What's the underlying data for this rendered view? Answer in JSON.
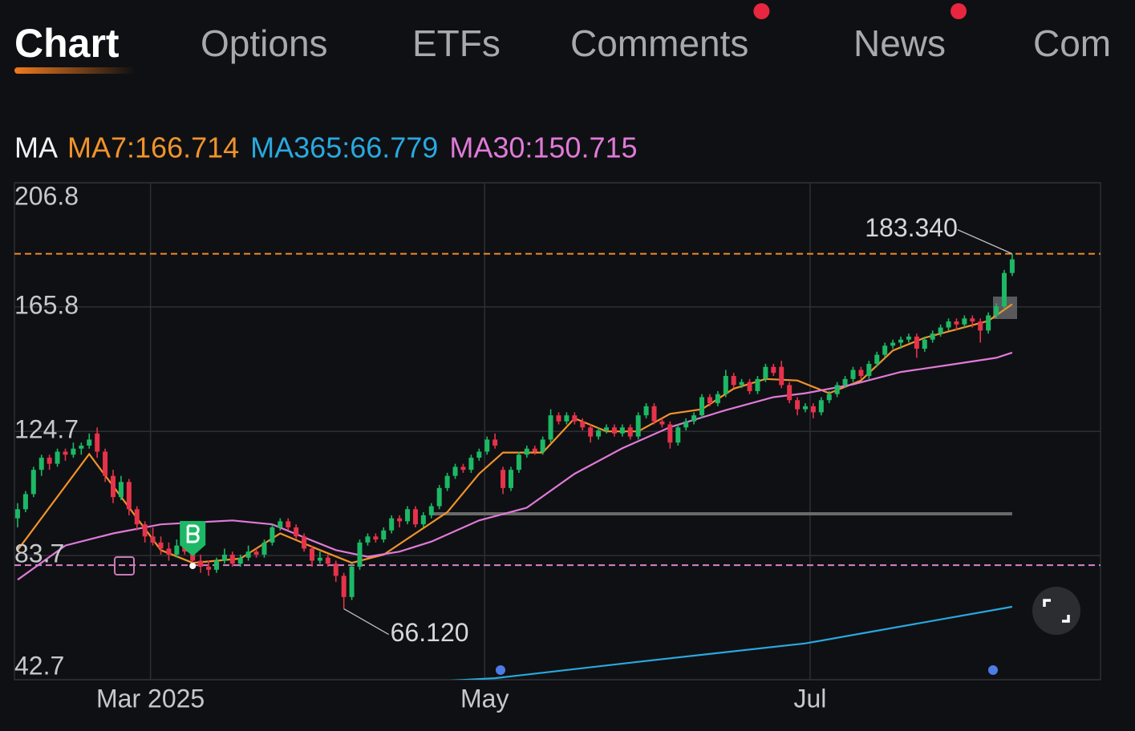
{
  "tabs": [
    {
      "label": "Chart",
      "active": true,
      "badge": false
    },
    {
      "label": "Options",
      "active": false,
      "badge": false
    },
    {
      "label": "ETFs",
      "active": false,
      "badge": false
    },
    {
      "label": "Comments",
      "active": false,
      "badge": true
    },
    {
      "label": "News",
      "active": false,
      "badge": true
    },
    {
      "label": "Com",
      "active": false,
      "badge": false
    }
  ],
  "indicator": "MA",
  "chart_data": {
    "type": "candlestick",
    "ylim": [
      42.7,
      206.8
    ],
    "yticks": [
      206.8,
      165.8,
      124.7,
      83.7,
      42.7
    ],
    "xlim": [
      -0.4,
      136.1
    ],
    "xticks": [
      {
        "value": 16.7,
        "label": "Mar 2025"
      },
      {
        "value": 58.7,
        "label": "May"
      },
      {
        "value": 99.6,
        "label": "Jul"
      }
    ],
    "grid": true,
    "up_color": "#1db866",
    "down_color": "#e5334b",
    "candles": [
      [
        96,
        101,
        93,
        99
      ],
      [
        99,
        105,
        98,
        104
      ],
      [
        104,
        113,
        103,
        112
      ],
      [
        112,
        117,
        110,
        116
      ],
      [
        116,
        117,
        112,
        114
      ],
      [
        114,
        119,
        113,
        118
      ],
      [
        118,
        119,
        115,
        117
      ],
      [
        117,
        121,
        116,
        119
      ],
      [
        119,
        121,
        117,
        120
      ],
      [
        120,
        124,
        119,
        122
      ],
      [
        124,
        126,
        116,
        118
      ],
      [
        118,
        119,
        108,
        110
      ],
      [
        110,
        112,
        101,
        103
      ],
      [
        103,
        110,
        102,
        108
      ],
      [
        108,
        109,
        97,
        99
      ],
      [
        99,
        100,
        92,
        94
      ],
      [
        94,
        95,
        88,
        90
      ],
      [
        90,
        93,
        87,
        88
      ],
      [
        88,
        90,
        84,
        86
      ],
      [
        86,
        88,
        82,
        84
      ],
      [
        84,
        89,
        83,
        87
      ],
      [
        87,
        90,
        84,
        85
      ],
      [
        85,
        87,
        80,
        82
      ],
      [
        82,
        84,
        78,
        80
      ],
      [
        80,
        82,
        77,
        79
      ],
      [
        79,
        83,
        78,
        82
      ],
      [
        82,
        86,
        81,
        84
      ],
      [
        84,
        85,
        80,
        81
      ],
      [
        81,
        84,
        80,
        83
      ],
      [
        83,
        87,
        82,
        85
      ],
      [
        85,
        86,
        83,
        84
      ],
      [
        84,
        89,
        83,
        88
      ],
      [
        88,
        94,
        87,
        93
      ],
      [
        93,
        96,
        92,
        95
      ],
      [
        95,
        96,
        92,
        93
      ],
      [
        93,
        94,
        89,
        90
      ],
      [
        90,
        91,
        85,
        86
      ],
      [
        86,
        87,
        80,
        82
      ],
      [
        82,
        85,
        81,
        83
      ],
      [
        83,
        84,
        80,
        81
      ],
      [
        81,
        82,
        75,
        77
      ],
      [
        77,
        78,
        66.12,
        70
      ],
      [
        70,
        81,
        69,
        80
      ],
      [
        80,
        89,
        79,
        88
      ],
      [
        88,
        91,
        87,
        90
      ],
      [
        90,
        91,
        88,
        89
      ],
      [
        89,
        93,
        88,
        92
      ],
      [
        92,
        97,
        91,
        96
      ],
      [
        96,
        97,
        93,
        95
      ],
      [
        95,
        100,
        94,
        99
      ],
      [
        99,
        100,
        93,
        94
      ],
      [
        94,
        98,
        93,
        97
      ],
      [
        97,
        101,
        96,
        100
      ],
      [
        100,
        107,
        99,
        106
      ],
      [
        106,
        111,
        105,
        110
      ],
      [
        110,
        114,
        109,
        113
      ],
      [
        113,
        114,
        111,
        112
      ],
      [
        112,
        117,
        111,
        116
      ],
      [
        116,
        119,
        115,
        118
      ],
      [
        118,
        123,
        117,
        122
      ],
      [
        122,
        124,
        119,
        120
      ],
      [
        112,
        113,
        104,
        106
      ],
      [
        106,
        113,
        105,
        112
      ],
      [
        112,
        118,
        111,
        117
      ],
      [
        117,
        120,
        116,
        119
      ],
      [
        119,
        120,
        117,
        118
      ],
      [
        118,
        123,
        117,
        122
      ],
      [
        122,
        132,
        121,
        130
      ],
      [
        130,
        131,
        127,
        128
      ],
      [
        128,
        131,
        127,
        130
      ],
      [
        130,
        131,
        127,
        128
      ],
      [
        128,
        129,
        125,
        126
      ],
      [
        126,
        127,
        121,
        123
      ],
      [
        123,
        126,
        122,
        125
      ],
      [
        125,
        127,
        124,
        126
      ],
      [
        126,
        127,
        123,
        124
      ],
      [
        124,
        127,
        123,
        126
      ],
      [
        126,
        127,
        122,
        123
      ],
      [
        123,
        131,
        122,
        130
      ],
      [
        130,
        134,
        129,
        133
      ],
      [
        133,
        134,
        127,
        128
      ],
      [
        128,
        129,
        126,
        127
      ],
      [
        127,
        128,
        119,
        121
      ],
      [
        121,
        127,
        120,
        126
      ],
      [
        126,
        129,
        125,
        128
      ],
      [
        128,
        131,
        127,
        130
      ],
      [
        130,
        137,
        129,
        136
      ],
      [
        136,
        137,
        133,
        134
      ],
      [
        134,
        138,
        133,
        137
      ],
      [
        137,
        145,
        136,
        143
      ],
      [
        143,
        144,
        139,
        140
      ],
      [
        140,
        142,
        139,
        141
      ],
      [
        141,
        142,
        137,
        138
      ],
      [
        138,
        143,
        137,
        142
      ],
      [
        142,
        147,
        141,
        146
      ],
      [
        146,
        147,
        143,
        144
      ],
      [
        146,
        148,
        139,
        140
      ],
      [
        140,
        141,
        134,
        135
      ],
      [
        135,
        136,
        130,
        132
      ],
      [
        132,
        134,
        131,
        133
      ],
      [
        133,
        134,
        129,
        131
      ],
      [
        131,
        136,
        130,
        135
      ],
      [
        135,
        138,
        134,
        137
      ],
      [
        137,
        141,
        136,
        140
      ],
      [
        140,
        143,
        139,
        142
      ],
      [
        142,
        146,
        141,
        145
      ],
      [
        145,
        146,
        142,
        143
      ],
      [
        143,
        148,
        142,
        147
      ],
      [
        147,
        151,
        146,
        150
      ],
      [
        150,
        154,
        149,
        153
      ],
      [
        153,
        155,
        152,
        154
      ],
      [
        154,
        156,
        152,
        155
      ],
      [
        155,
        157,
        154,
        156
      ],
      [
        156,
        157,
        149,
        152
      ],
      [
        152,
        156,
        151,
        155
      ],
      [
        155,
        158,
        154,
        157
      ],
      [
        157,
        160,
        156,
        159
      ],
      [
        159,
        162,
        158,
        161
      ],
      [
        161,
        162,
        158,
        160
      ],
      [
        160,
        163,
        159,
        162
      ],
      [
        162,
        163,
        159,
        161
      ],
      [
        161,
        162,
        154,
        158
      ],
      [
        158,
        164,
        157,
        163
      ],
      [
        163,
        167,
        162,
        166
      ],
      [
        166,
        178,
        165,
        177
      ],
      [
        177,
        183.34,
        176,
        181.5
      ]
    ],
    "series": [
      {
        "name": "MA7",
        "legend": "MA7:166.714",
        "color": "#f0932b",
        "x": [
          0,
          9,
          18,
          22,
          28,
          33,
          38,
          42,
          46,
          50,
          54,
          58,
          61,
          66,
          70,
          74,
          78,
          82,
          86,
          90,
          94,
          98,
          102,
          106,
          110,
          114,
          118,
          122,
          125
        ],
        "values": [
          85.5,
          117.2,
          85.5,
          81.3,
          82.7,
          91,
          85.5,
          81.3,
          84,
          91,
          98,
          110.7,
          117.7,
          117.7,
          129,
          124.7,
          124.7,
          130.5,
          132,
          138.8,
          142,
          141.5,
          137.3,
          141.5,
          151.4,
          155.6,
          158.4,
          161.2,
          166.714
        ]
      },
      {
        "name": "MA365",
        "legend": "MA365:66.779",
        "color": "#29a9e0",
        "x": [
          48,
          60,
          78,
          99,
          125
        ],
        "values": [
          41.5,
          43.2,
          48.6,
          54.7,
          66.779
        ]
      },
      {
        "name": "MA30",
        "legend": "MA30:150.715",
        "color": "#e07ad8",
        "x": [
          0,
          6,
          12,
          18,
          27,
          32,
          36,
          40,
          44,
          48,
          52,
          58,
          64,
          70,
          76,
          82,
          89,
          95,
          99,
          105,
          111,
          117,
          123,
          125
        ],
        "values": [
          75.7,
          87,
          91,
          94,
          95.3,
          94,
          89.7,
          85.5,
          83.3,
          85,
          88.3,
          95.3,
          99.5,
          110.7,
          119.1,
          126.1,
          131.7,
          136,
          137.3,
          140.2,
          144.3,
          146.6,
          149,
          150.715
        ]
      }
    ],
    "levels": [
      {
        "value": 183.34,
        "color": "#f08a24",
        "dashed": true
      },
      {
        "value": 80.5,
        "color": "#d982c9",
        "dashed": true
      },
      {
        "value": 97.5,
        "color": "#6a6a6a",
        "dashed": false,
        "start": 52,
        "end": 125
      }
    ],
    "annotations": [
      {
        "index": 125,
        "value": 183.34,
        "label": "183.340"
      },
      {
        "index": 41,
        "value": 66.12,
        "label": "66.120"
      }
    ]
  }
}
